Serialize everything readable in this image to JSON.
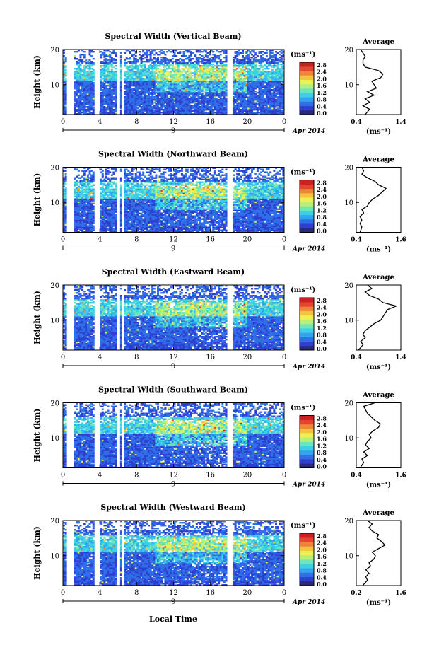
{
  "figure": {
    "bottom_label": "Local Time",
    "unit_label": "(ms⁻¹)",
    "avg_title": "Average",
    "date_label": "Apr 2014",
    "date_tick_label": "9",
    "height_axis_label": "Height (km)",
    "colors": [
      "#2a2a7a",
      "#2f3fcf",
      "#2f6fe8",
      "#33a4ee",
      "#3bcfe8",
      "#6ee6b8",
      "#b6f07a",
      "#eef050",
      "#f5c23c",
      "#f0843a",
      "#e8432f",
      "#cc1f1f"
    ],
    "colorbar_ticks": [
      "0.0",
      "0.4",
      "0.8",
      "1.2",
      "1.6",
      "2.0",
      "2.4",
      "2.8"
    ]
  },
  "chart_data": [
    {
      "type": "heatmap",
      "title": "Spectral Width (Vertical Beam)",
      "xlabel": "Local Time",
      "ylabel": "Height (km)",
      "x_ticks": [
        "0",
        "4",
        "8",
        "12",
        "16",
        "20",
        "0"
      ],
      "y_ticks": [
        "10",
        "20"
      ],
      "xlim": [
        0,
        24
      ],
      "ylim": [
        1.5,
        20
      ],
      "colorbar": {
        "label": "(ms⁻¹)",
        "range": [
          0.0,
          2.8
        ]
      },
      "data_gaps_hours": [
        [
          0.5,
          1.2
        ],
        [
          3.5,
          4.0
        ],
        [
          5.8,
          6.2
        ],
        [
          6.4,
          6.6
        ],
        [
          17.9,
          18.4
        ]
      ],
      "average_profile": {
        "title": "Average",
        "xlabel": "(ms⁻¹)",
        "x_ticks": [
          "0.4",
          "1.4"
        ],
        "xlim": [
          0.4,
          1.4
        ],
        "y_ticks": [
          "10",
          "20"
        ],
        "points": [
          [
            0.6,
            1.5
          ],
          [
            0.7,
            3
          ],
          [
            0.55,
            4
          ],
          [
            0.7,
            5
          ],
          [
            0.6,
            6
          ],
          [
            0.8,
            7
          ],
          [
            0.65,
            8
          ],
          [
            0.85,
            9
          ],
          [
            0.8,
            10
          ],
          [
            0.75,
            11
          ],
          [
            0.95,
            12
          ],
          [
            1.0,
            13
          ],
          [
            0.9,
            14
          ],
          [
            0.6,
            15
          ],
          [
            0.55,
            16
          ],
          [
            0.55,
            17
          ],
          [
            0.6,
            18
          ],
          [
            0.55,
            19
          ],
          [
            0.5,
            20
          ]
        ]
      }
    },
    {
      "type": "heatmap",
      "title": "Spectral Width (Northward Beam)",
      "xlabel": "Local Time",
      "ylabel": "Height (km)",
      "x_ticks": [
        "0",
        "4",
        "8",
        "12",
        "16",
        "20",
        "0"
      ],
      "y_ticks": [
        "10",
        "20"
      ],
      "xlim": [
        0,
        24
      ],
      "ylim": [
        1.5,
        20
      ],
      "colorbar": {
        "label": "(ms⁻¹)",
        "range": [
          0.0,
          2.8
        ]
      },
      "data_gaps_hours": [
        [
          0.5,
          1.2
        ],
        [
          3.5,
          4.0
        ],
        [
          5.8,
          6.2
        ],
        [
          6.4,
          6.6
        ],
        [
          17.9,
          18.4
        ]
      ],
      "average_profile": {
        "title": "Average",
        "xlabel": "(ms⁻¹)",
        "x_ticks": [
          "0.4",
          "1.6"
        ],
        "xlim": [
          0.4,
          1.6
        ],
        "y_ticks": [
          "10",
          "20"
        ],
        "points": [
          [
            0.5,
            1.5
          ],
          [
            0.55,
            3
          ],
          [
            0.5,
            4
          ],
          [
            0.55,
            5
          ],
          [
            0.5,
            6
          ],
          [
            0.6,
            7
          ],
          [
            0.55,
            8
          ],
          [
            0.7,
            9
          ],
          [
            0.75,
            10
          ],
          [
            0.85,
            11
          ],
          [
            1.0,
            12
          ],
          [
            1.1,
            13
          ],
          [
            1.2,
            14
          ],
          [
            1.0,
            15
          ],
          [
            0.9,
            16
          ],
          [
            0.7,
            17
          ],
          [
            0.55,
            18
          ],
          [
            0.6,
            19
          ],
          [
            0.55,
            20
          ]
        ]
      }
    },
    {
      "type": "heatmap",
      "title": "Spectral Width (Eastward Beam)",
      "xlabel": "Local Time",
      "ylabel": "Height (km)",
      "x_ticks": [
        "0",
        "4",
        "8",
        "12",
        "16",
        "20",
        "0"
      ],
      "y_ticks": [
        "10",
        "20"
      ],
      "xlim": [
        0,
        24
      ],
      "ylim": [
        1.5,
        20
      ],
      "colorbar": {
        "label": "(ms⁻¹)",
        "range": [
          0.0,
          2.8
        ]
      },
      "data_gaps_hours": [
        [
          0.5,
          1.2
        ],
        [
          3.5,
          4.0
        ],
        [
          5.8,
          6.2
        ],
        [
          6.4,
          6.6
        ],
        [
          17.9,
          18.4
        ]
      ],
      "average_profile": {
        "title": "Average",
        "xlabel": "(ms⁻¹)",
        "x_ticks": [
          "0.4",
          "1.4"
        ],
        "xlim": [
          0.4,
          1.4
        ],
        "y_ticks": [
          "10",
          "20"
        ],
        "points": [
          [
            0.45,
            1.5
          ],
          [
            0.55,
            3
          ],
          [
            0.5,
            4
          ],
          [
            0.6,
            5
          ],
          [
            0.55,
            6
          ],
          [
            0.6,
            7
          ],
          [
            0.7,
            8
          ],
          [
            0.8,
            9
          ],
          [
            0.95,
            10
          ],
          [
            1.0,
            11
          ],
          [
            1.05,
            12
          ],
          [
            1.1,
            13
          ],
          [
            1.3,
            14
          ],
          [
            1.0,
            15
          ],
          [
            0.9,
            16
          ],
          [
            0.7,
            17
          ],
          [
            0.6,
            18
          ],
          [
            0.75,
            19
          ],
          [
            0.65,
            20
          ]
        ]
      }
    },
    {
      "type": "heatmap",
      "title": "Spectral Width (Southward Beam)",
      "xlabel": "Local Time",
      "ylabel": "Height (km)",
      "x_ticks": [
        "0",
        "4",
        "8",
        "12",
        "16",
        "20",
        "0"
      ],
      "y_ticks": [
        "10",
        "20"
      ],
      "xlim": [
        0,
        24
      ],
      "ylim": [
        1.5,
        20
      ],
      "colorbar": {
        "label": "(ms⁻¹)",
        "range": [
          0.0,
          2.8
        ]
      },
      "data_gaps_hours": [
        [
          0.5,
          1.2
        ],
        [
          3.5,
          4.0
        ],
        [
          5.8,
          6.2
        ],
        [
          6.4,
          6.6
        ],
        [
          17.9,
          18.4
        ]
      ],
      "average_profile": {
        "title": "Average",
        "xlabel": "(ms⁻¹)",
        "x_ticks": [
          "0.4",
          "1.6"
        ],
        "xlim": [
          0.4,
          1.6
        ],
        "y_ticks": [
          "10",
          "20"
        ],
        "points": [
          [
            0.5,
            1.5
          ],
          [
            0.6,
            3
          ],
          [
            0.55,
            4
          ],
          [
            0.7,
            5
          ],
          [
            0.6,
            6
          ],
          [
            0.75,
            7
          ],
          [
            0.65,
            8
          ],
          [
            0.7,
            9
          ],
          [
            0.8,
            10
          ],
          [
            0.75,
            11
          ],
          [
            0.85,
            12
          ],
          [
            1.0,
            13
          ],
          [
            1.05,
            14
          ],
          [
            0.9,
            15
          ],
          [
            0.8,
            16
          ],
          [
            0.7,
            17
          ],
          [
            0.65,
            18
          ],
          [
            0.6,
            19
          ],
          [
            0.9,
            20
          ]
        ]
      }
    },
    {
      "type": "heatmap",
      "title": "Spectral Width (Westward Beam)",
      "xlabel": "Local Time",
      "ylabel": "Height (km)",
      "x_ticks": [
        "0",
        "4",
        "8",
        "12",
        "16",
        "20",
        "0"
      ],
      "y_ticks": [
        "10",
        "20"
      ],
      "xlim": [
        0,
        24
      ],
      "ylim": [
        1.5,
        20
      ],
      "colorbar": {
        "label": "(ms⁻¹)",
        "range": [
          0.0,
          2.8
        ]
      },
      "data_gaps_hours": [
        [
          0.5,
          1.2
        ],
        [
          3.5,
          4.0
        ],
        [
          5.8,
          6.2
        ],
        [
          6.4,
          6.6
        ],
        [
          17.9,
          18.4
        ]
      ],
      "average_profile": {
        "title": "Average",
        "xlabel": "(ms⁻¹)",
        "x_ticks": [
          "0.2",
          "1.6"
        ],
        "xlim": [
          0.2,
          1.6
        ],
        "y_ticks": [
          "10",
          "20"
        ],
        "points": [
          [
            0.4,
            1.5
          ],
          [
            0.55,
            3
          ],
          [
            0.5,
            4
          ],
          [
            0.6,
            5
          ],
          [
            0.5,
            6
          ],
          [
            0.65,
            7
          ],
          [
            0.6,
            8
          ],
          [
            0.75,
            9
          ],
          [
            0.8,
            10
          ],
          [
            0.7,
            11
          ],
          [
            0.9,
            12
          ],
          [
            1.1,
            13
          ],
          [
            1.0,
            14
          ],
          [
            0.85,
            15
          ],
          [
            0.9,
            16
          ],
          [
            0.7,
            17
          ],
          [
            0.6,
            18
          ],
          [
            0.7,
            19
          ],
          [
            0.55,
            20
          ]
        ]
      }
    }
  ]
}
